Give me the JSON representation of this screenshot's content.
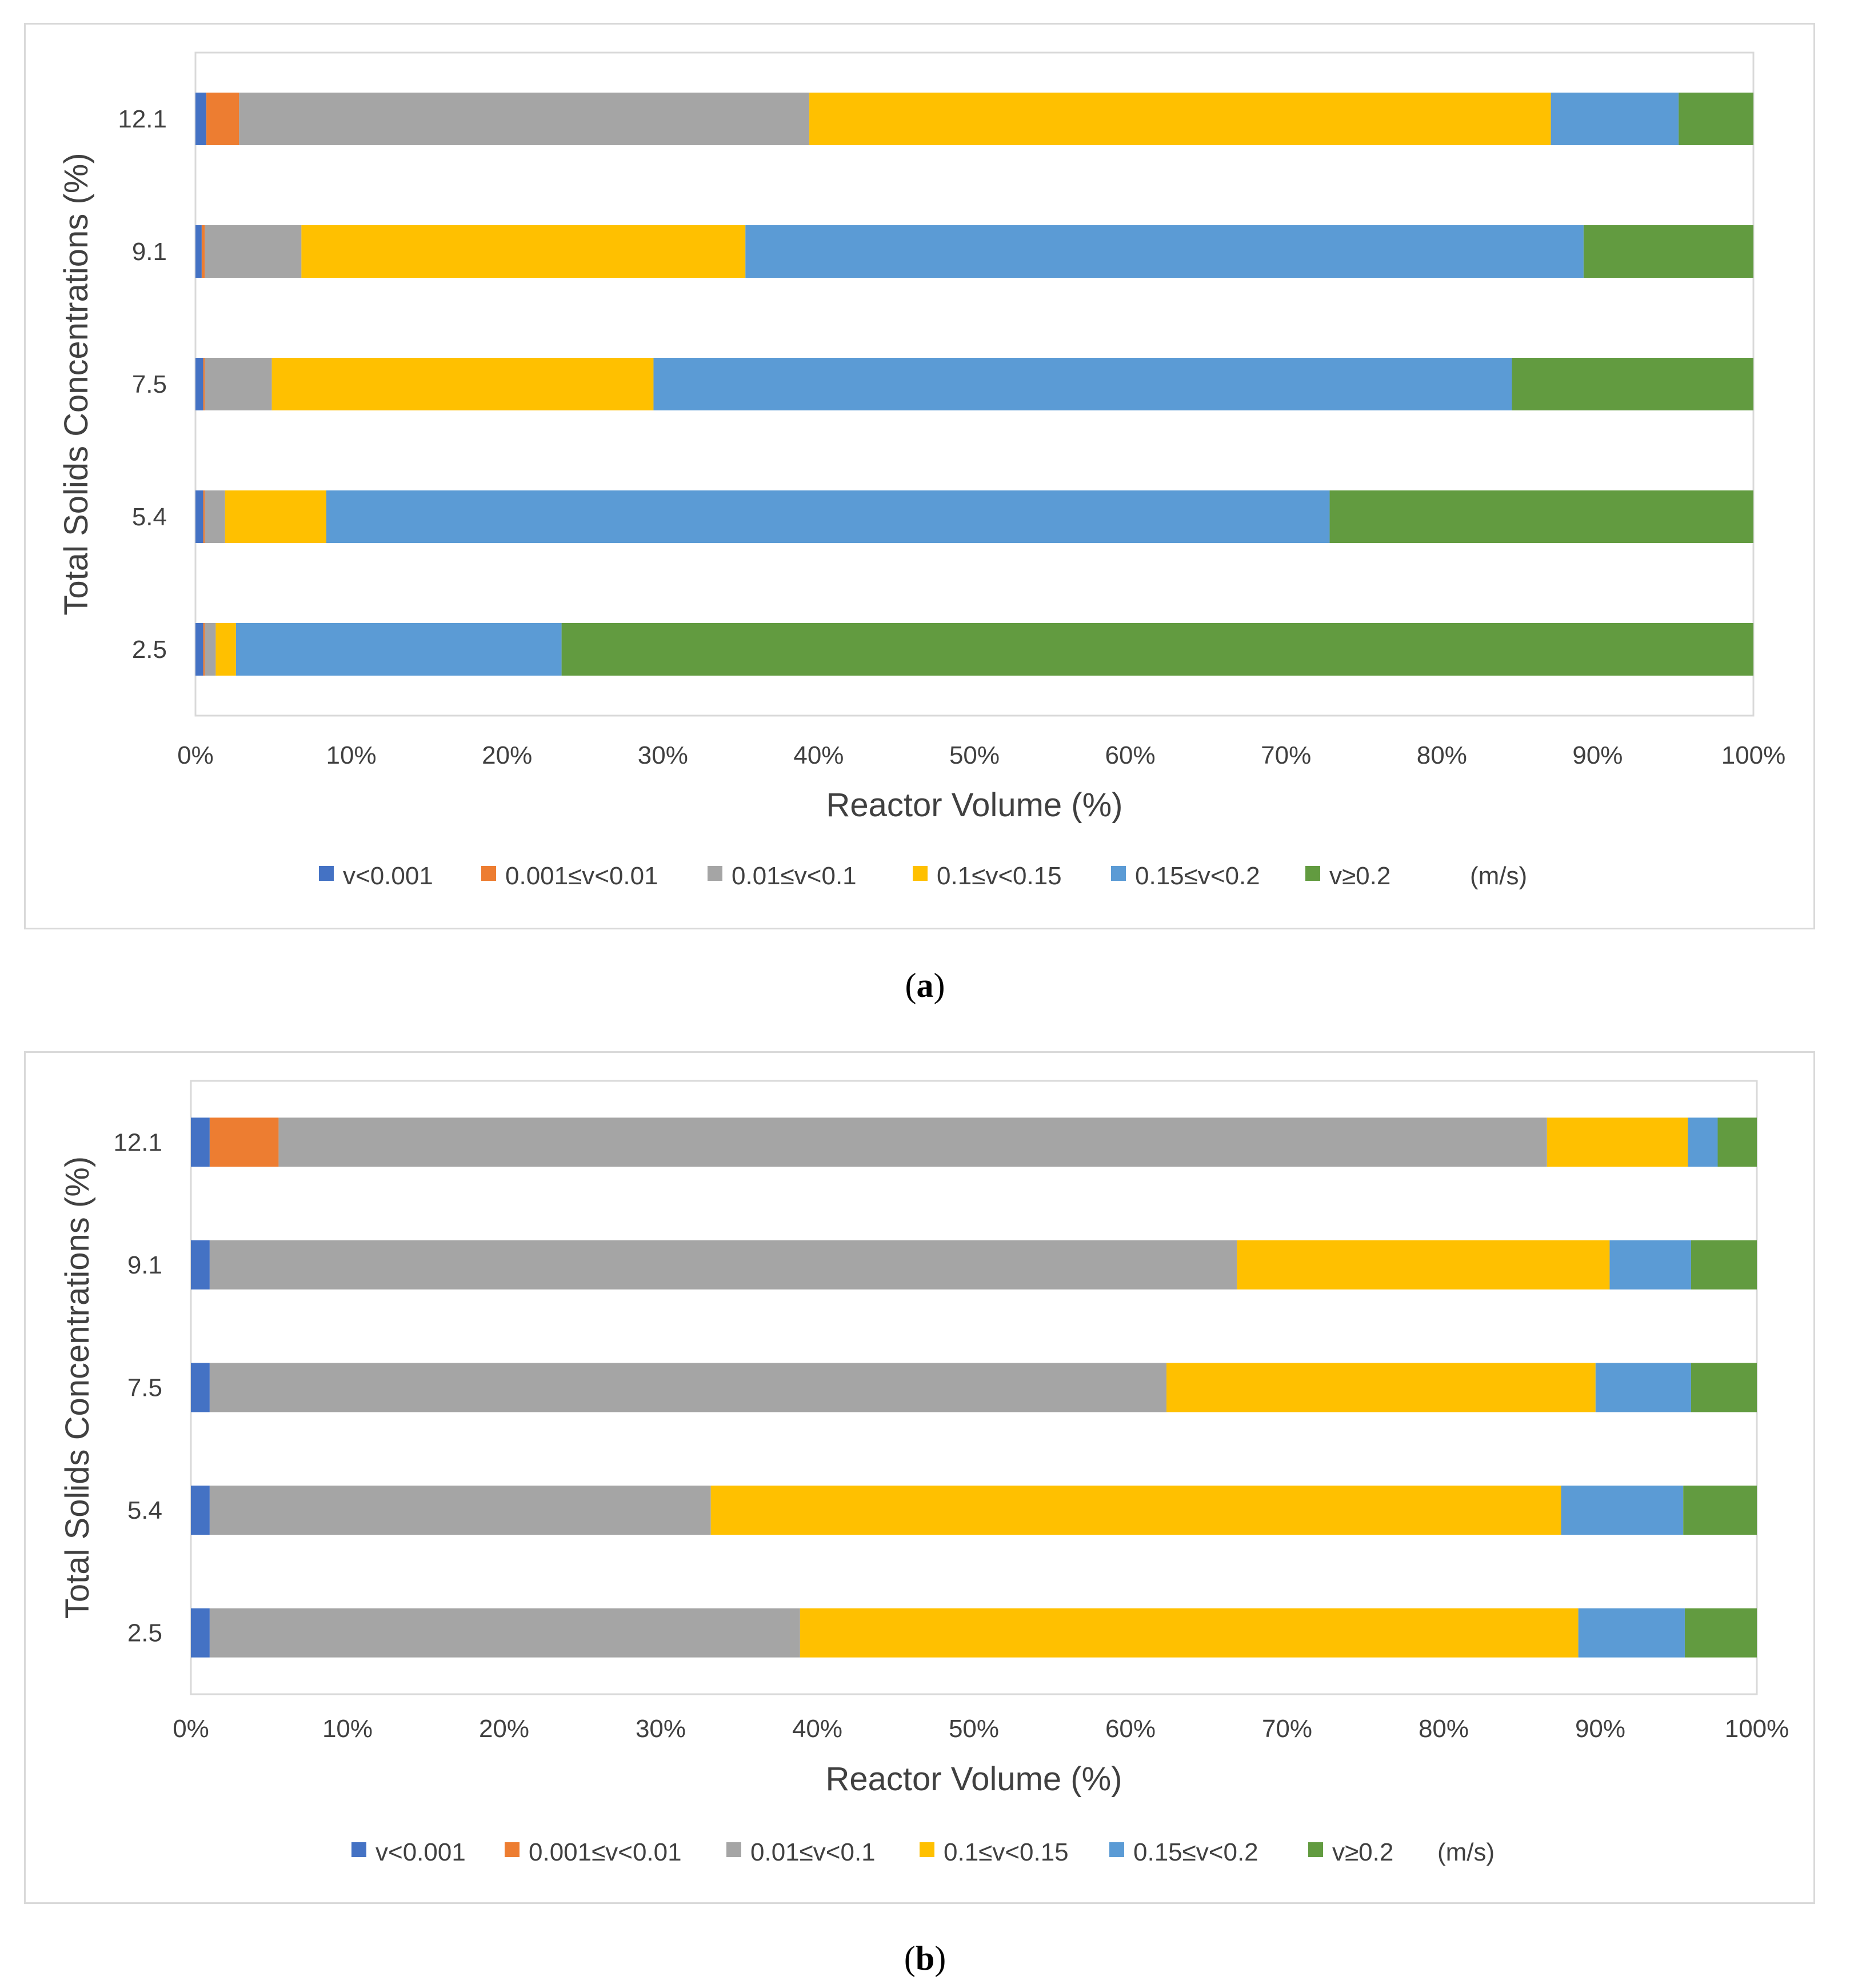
{
  "chart_data": [
    {
      "id": "a",
      "type": "bar",
      "orientation": "horizontal",
      "stacked": "percent",
      "caption_label": "a",
      "title": "",
      "xlabel": "Reactor Volume (%)",
      "ylabel": "Total Solids Concentrations (%)",
      "xlim": [
        0,
        100
      ],
      "x_ticks": [
        "0%",
        "10%",
        "20%",
        "30%",
        "40%",
        "50%",
        "60%",
        "70%",
        "80%",
        "90%",
        "100%"
      ],
      "categories": [
        "2.5",
        "5.4",
        "7.5",
        "9.1",
        "12.1"
      ],
      "units_label": "(m/s)",
      "legend_position": "bottom",
      "series": [
        {
          "name": "v<0.001",
          "color": "#4472C4",
          "values": [
            0.5,
            0.5,
            0.5,
            0.4,
            0.7
          ]
        },
        {
          "name": "0.001≤v<0.01",
          "color": "#ED7D31",
          "values": [
            0.1,
            0.1,
            0.1,
            0.2,
            2.1
          ]
        },
        {
          "name": "0.01≤v<0.1",
          "color": "#A5A5A5",
          "values": [
            0.7,
            1.3,
            4.3,
            6.2,
            36.6
          ]
        },
        {
          "name": "0.1≤v<0.15",
          "color": "#FFC000",
          "values": [
            1.3,
            6.5,
            24.5,
            28.5,
            47.6
          ]
        },
        {
          "name": "0.15≤v<0.2",
          "color": "#5B9BD5",
          "values": [
            20.9,
            64.4,
            55.1,
            53.8,
            8.2
          ]
        },
        {
          "name": "v≥0.2",
          "color": "#629B40",
          "values": [
            76.5,
            27.2,
            15.5,
            10.9,
            4.8
          ]
        }
      ]
    },
    {
      "id": "b",
      "type": "bar",
      "orientation": "horizontal",
      "stacked": "percent",
      "caption_label": "b",
      "title": "",
      "xlabel": "Reactor Volume (%)",
      "ylabel": "Total Solids Concentrations (%)",
      "xlim": [
        0,
        100
      ],
      "x_ticks": [
        "0%",
        "10%",
        "20%",
        "30%",
        "40%",
        "50%",
        "60%",
        "70%",
        "80%",
        "90%",
        "100%"
      ],
      "categories": [
        "2.5",
        "5.4",
        "7.5",
        "9.1",
        "12.1"
      ],
      "units_label": "(m/s)",
      "legend_position": "bottom",
      "series": [
        {
          "name": "v<0.001",
          "color": "#4472C4",
          "values": [
            1.2,
            1.2,
            1.2,
            1.2,
            1.2
          ]
        },
        {
          "name": "0.001≤v<0.01",
          "color": "#ED7D31",
          "values": [
            0.0,
            0.0,
            0.0,
            0.0,
            4.4
          ]
        },
        {
          "name": "0.01≤v<0.1",
          "color": "#A5A5A5",
          "values": [
            37.7,
            32.0,
            61.1,
            65.6,
            81.0
          ]
        },
        {
          "name": "0.1≤v<0.15",
          "color": "#FFC000",
          "values": [
            49.7,
            54.3,
            27.4,
            23.8,
            9.0
          ]
        },
        {
          "name": "0.15≤v<0.2",
          "color": "#5B9BD5",
          "values": [
            6.8,
            7.8,
            6.1,
            5.2,
            1.9
          ]
        },
        {
          "name": "v≥0.2",
          "color": "#629B40",
          "values": [
            4.6,
            4.7,
            4.2,
            4.2,
            2.5
          ]
        }
      ]
    }
  ]
}
